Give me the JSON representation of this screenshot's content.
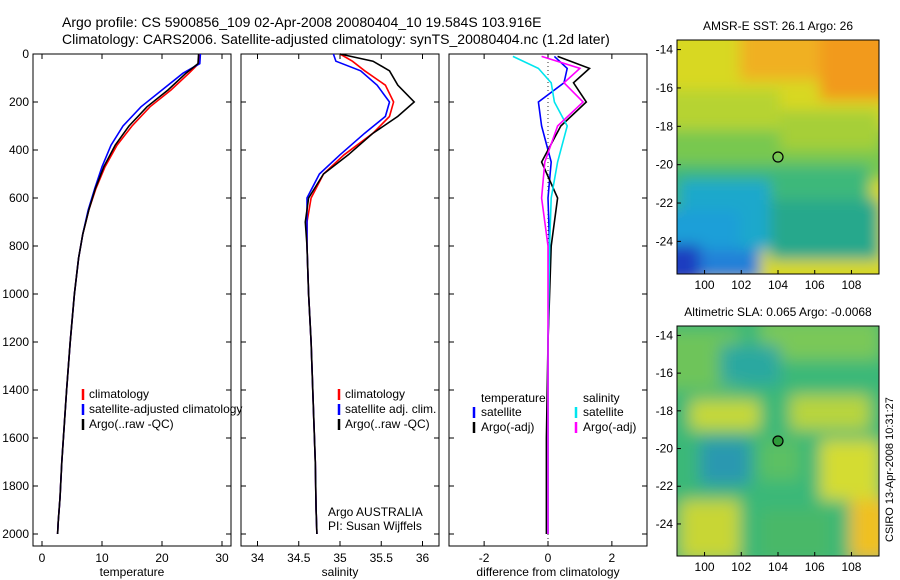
{
  "header": {
    "line1": "Argo profile: CS 5900856_109 02-Apr-2008 20080404_10 19.584S 103.916E",
    "line2": "Climatology: CARS2006. Satellite-adjusted climatology: synTS_20080404.nc (1.2d later)"
  },
  "colors": {
    "climatology": "#ff0000",
    "satellite": "#0000ff",
    "argo": "#000000",
    "sal_satellite": "#00e5ee",
    "sal_argo": "#ff00ff"
  },
  "chart_data": [
    {
      "type": "line",
      "id": "temperature",
      "xlabel": "temperature",
      "xlim": [
        -1.5,
        31.5
      ],
      "ylim": [
        2050,
        0
      ],
      "xticks": [
        0,
        10,
        20,
        30
      ],
      "yticks": [
        0,
        200,
        400,
        600,
        800,
        1000,
        1200,
        1400,
        1600,
        1800,
        2000
      ],
      "legend": [
        "climatology",
        "satellite-adjusted climatology",
        "Argo(..raw -QC)"
      ],
      "legend_position": "lower-right",
      "series": [
        {
          "name": "climatology",
          "color": "#ff0000",
          "x": [
            26.2,
            26.1,
            24.5,
            21.5,
            18,
            15,
            12.5,
            10.5,
            9,
            7.8,
            6.8,
            6.1,
            5.4,
            4.7,
            4.1,
            3.7,
            3.3,
            3.0,
            2.7,
            2.6
          ],
          "depth": [
            0,
            40,
            80,
            150,
            220,
            300,
            380,
            470,
            560,
            650,
            750,
            850,
            1000,
            1200,
            1400,
            1550,
            1700,
            1850,
            1950,
            2000
          ]
        },
        {
          "name": "satellite-adjusted climatology",
          "color": "#0000ff",
          "x": [
            26.4,
            26.3,
            23.5,
            20,
            16.5,
            13.5,
            11.5,
            10,
            8.8,
            7.7,
            6.8,
            6.1,
            5.4,
            4.7,
            4.1,
            3.7,
            3.3,
            3.0,
            2.7,
            2.6
          ],
          "depth": [
            0,
            40,
            80,
            150,
            220,
            300,
            380,
            470,
            560,
            650,
            750,
            850,
            1000,
            1200,
            1400,
            1550,
            1700,
            1850,
            1950,
            2000
          ]
        },
        {
          "name": "Argo(..raw -QC)",
          "color": "#000000",
          "x": [
            26.1,
            26.0,
            24.0,
            21.0,
            17.5,
            14.5,
            12.2,
            10.3,
            8.9,
            7.8,
            6.8,
            6.1,
            5.4,
            4.7,
            4.1,
            3.7,
            3.3,
            3.0,
            2.7,
            2.6
          ],
          "depth": [
            0,
            40,
            80,
            150,
            220,
            300,
            380,
            470,
            560,
            650,
            750,
            850,
            1000,
            1200,
            1400,
            1550,
            1700,
            1850,
            1950,
            2000
          ]
        }
      ]
    },
    {
      "type": "line",
      "id": "salinity",
      "xlabel": "salinity",
      "xlim": [
        33.8,
        36.2
      ],
      "ylim": [
        2050,
        0
      ],
      "xticks": [
        34,
        34.5,
        35,
        35.5,
        36
      ],
      "legend": [
        "climatology",
        "satellite adj. clim.",
        "Argo(..raw -QC)"
      ],
      "legend_position": "lower-right",
      "annotation": [
        "Argo AUSTRALIA",
        "PI: Susan Wijffels"
      ],
      "series": [
        {
          "name": "climatology",
          "color": "#ff0000",
          "x": [
            35.0,
            35.15,
            35.3,
            35.55,
            35.65,
            35.6,
            35.4,
            35.05,
            34.8,
            34.65,
            34.6,
            34.6,
            34.62,
            34.65,
            34.68,
            34.7,
            34.71,
            34.72
          ],
          "depth": [
            0,
            30,
            70,
            130,
            200,
            260,
            330,
            420,
            500,
            600,
            700,
            800,
            1000,
            1200,
            1500,
            1700,
            1900,
            2000
          ]
        },
        {
          "name": "satellite adj. clim.",
          "color": "#0000ff",
          "x": [
            34.92,
            34.95,
            35.25,
            35.45,
            35.6,
            35.55,
            35.3,
            35.0,
            34.75,
            34.6,
            34.6,
            34.6,
            34.62,
            34.65,
            34.68,
            34.7,
            34.71,
            34.72
          ],
          "depth": [
            0,
            30,
            70,
            130,
            200,
            260,
            330,
            420,
            500,
            600,
            700,
            800,
            1000,
            1200,
            1500,
            1700,
            1900,
            2000
          ]
        },
        {
          "name": "Argo(..raw -QC)",
          "color": "#000000",
          "x": [
            35.0,
            35.4,
            35.6,
            35.7,
            35.9,
            35.7,
            35.4,
            35.1,
            34.8,
            34.62,
            34.58,
            34.6,
            34.62,
            34.65,
            34.68,
            34.7,
            34.71,
            34.72
          ],
          "depth": [
            0,
            30,
            70,
            130,
            200,
            260,
            330,
            420,
            500,
            600,
            700,
            800,
            1000,
            1200,
            1500,
            1700,
            1900,
            2000
          ]
        }
      ]
    },
    {
      "type": "line",
      "id": "difference",
      "xlabel": "difference from climatology",
      "xlim": [
        -3.1,
        3.1
      ],
      "ylim": [
        2050,
        0
      ],
      "xticks": [
        -2,
        0,
        2
      ],
      "legend_groups": [
        {
          "title": "temperature",
          "items": [
            "satellite",
            "Argo(-adj)"
          ]
        },
        {
          "title": "salinity",
          "items": [
            "satellite",
            "Argo(-adj)"
          ]
        }
      ],
      "series": [
        {
          "name": "temperature satellite",
          "color": "#0000ff",
          "x": [
            0.2,
            0.6,
            0.5,
            -0.3,
            -0.2,
            0.1,
            0.0,
            0.05,
            0.0,
            0.0,
            0.0
          ],
          "depth": [
            10,
            60,
            120,
            200,
            300,
            450,
            600,
            800,
            1200,
            1600,
            2000
          ]
        },
        {
          "name": "temperature Argo(-adj)",
          "color": "#000000",
          "x": [
            0.3,
            1.3,
            0.8,
            1.2,
            0.4,
            -0.2,
            0.3,
            0.1,
            0.0,
            -0.05,
            -0.05
          ],
          "depth": [
            10,
            60,
            120,
            200,
            300,
            450,
            600,
            800,
            1200,
            1600,
            2000
          ]
        },
        {
          "name": "salinity satellite",
          "color": "#00e5ee",
          "x": [
            -1.1,
            -0.3,
            0.1,
            0.2,
            0.6,
            0.3,
            0.1,
            0.05,
            0.0,
            0.0,
            0.0
          ],
          "depth": [
            10,
            60,
            120,
            200,
            300,
            450,
            600,
            800,
            1200,
            1600,
            2000
          ]
        },
        {
          "name": "salinity Argo(-adj)",
          "color": "#ff00ff",
          "x": [
            -0.2,
            1.0,
            0.5,
            1.1,
            0.3,
            -0.1,
            -0.2,
            0.0,
            0.0,
            0.0,
            0.0
          ],
          "depth": [
            10,
            60,
            120,
            200,
            300,
            450,
            600,
            800,
            1200,
            1600,
            2000
          ]
        }
      ]
    },
    {
      "type": "heatmap",
      "id": "sst-map",
      "title": "AMSR-E SST: 26.1 Argo: 26",
      "xlim": [
        98.5,
        109.5
      ],
      "ylim": [
        -25.7,
        -13.5
      ],
      "xticks": [
        100,
        102,
        104,
        106,
        108
      ],
      "yticks": [
        -14,
        -16,
        -18,
        -20,
        -22,
        -24
      ],
      "marker": {
        "lon": 103.9,
        "lat": -19.6
      }
    },
    {
      "type": "heatmap",
      "id": "sla-map",
      "title": "Altimetric SLA: 0.065 Argo: -0.0068",
      "xlim": [
        98.5,
        109.5
      ],
      "ylim": [
        -25.7,
        -13.5
      ],
      "xticks": [
        100,
        102,
        104,
        106,
        108
      ],
      "yticks": [
        -14,
        -16,
        -18,
        -20,
        -22,
        -24
      ],
      "marker": {
        "lon": 103.9,
        "lat": -19.6
      }
    }
  ],
  "footer": {
    "credit": "CSIRO 13-Apr-2008 10:31:27"
  }
}
